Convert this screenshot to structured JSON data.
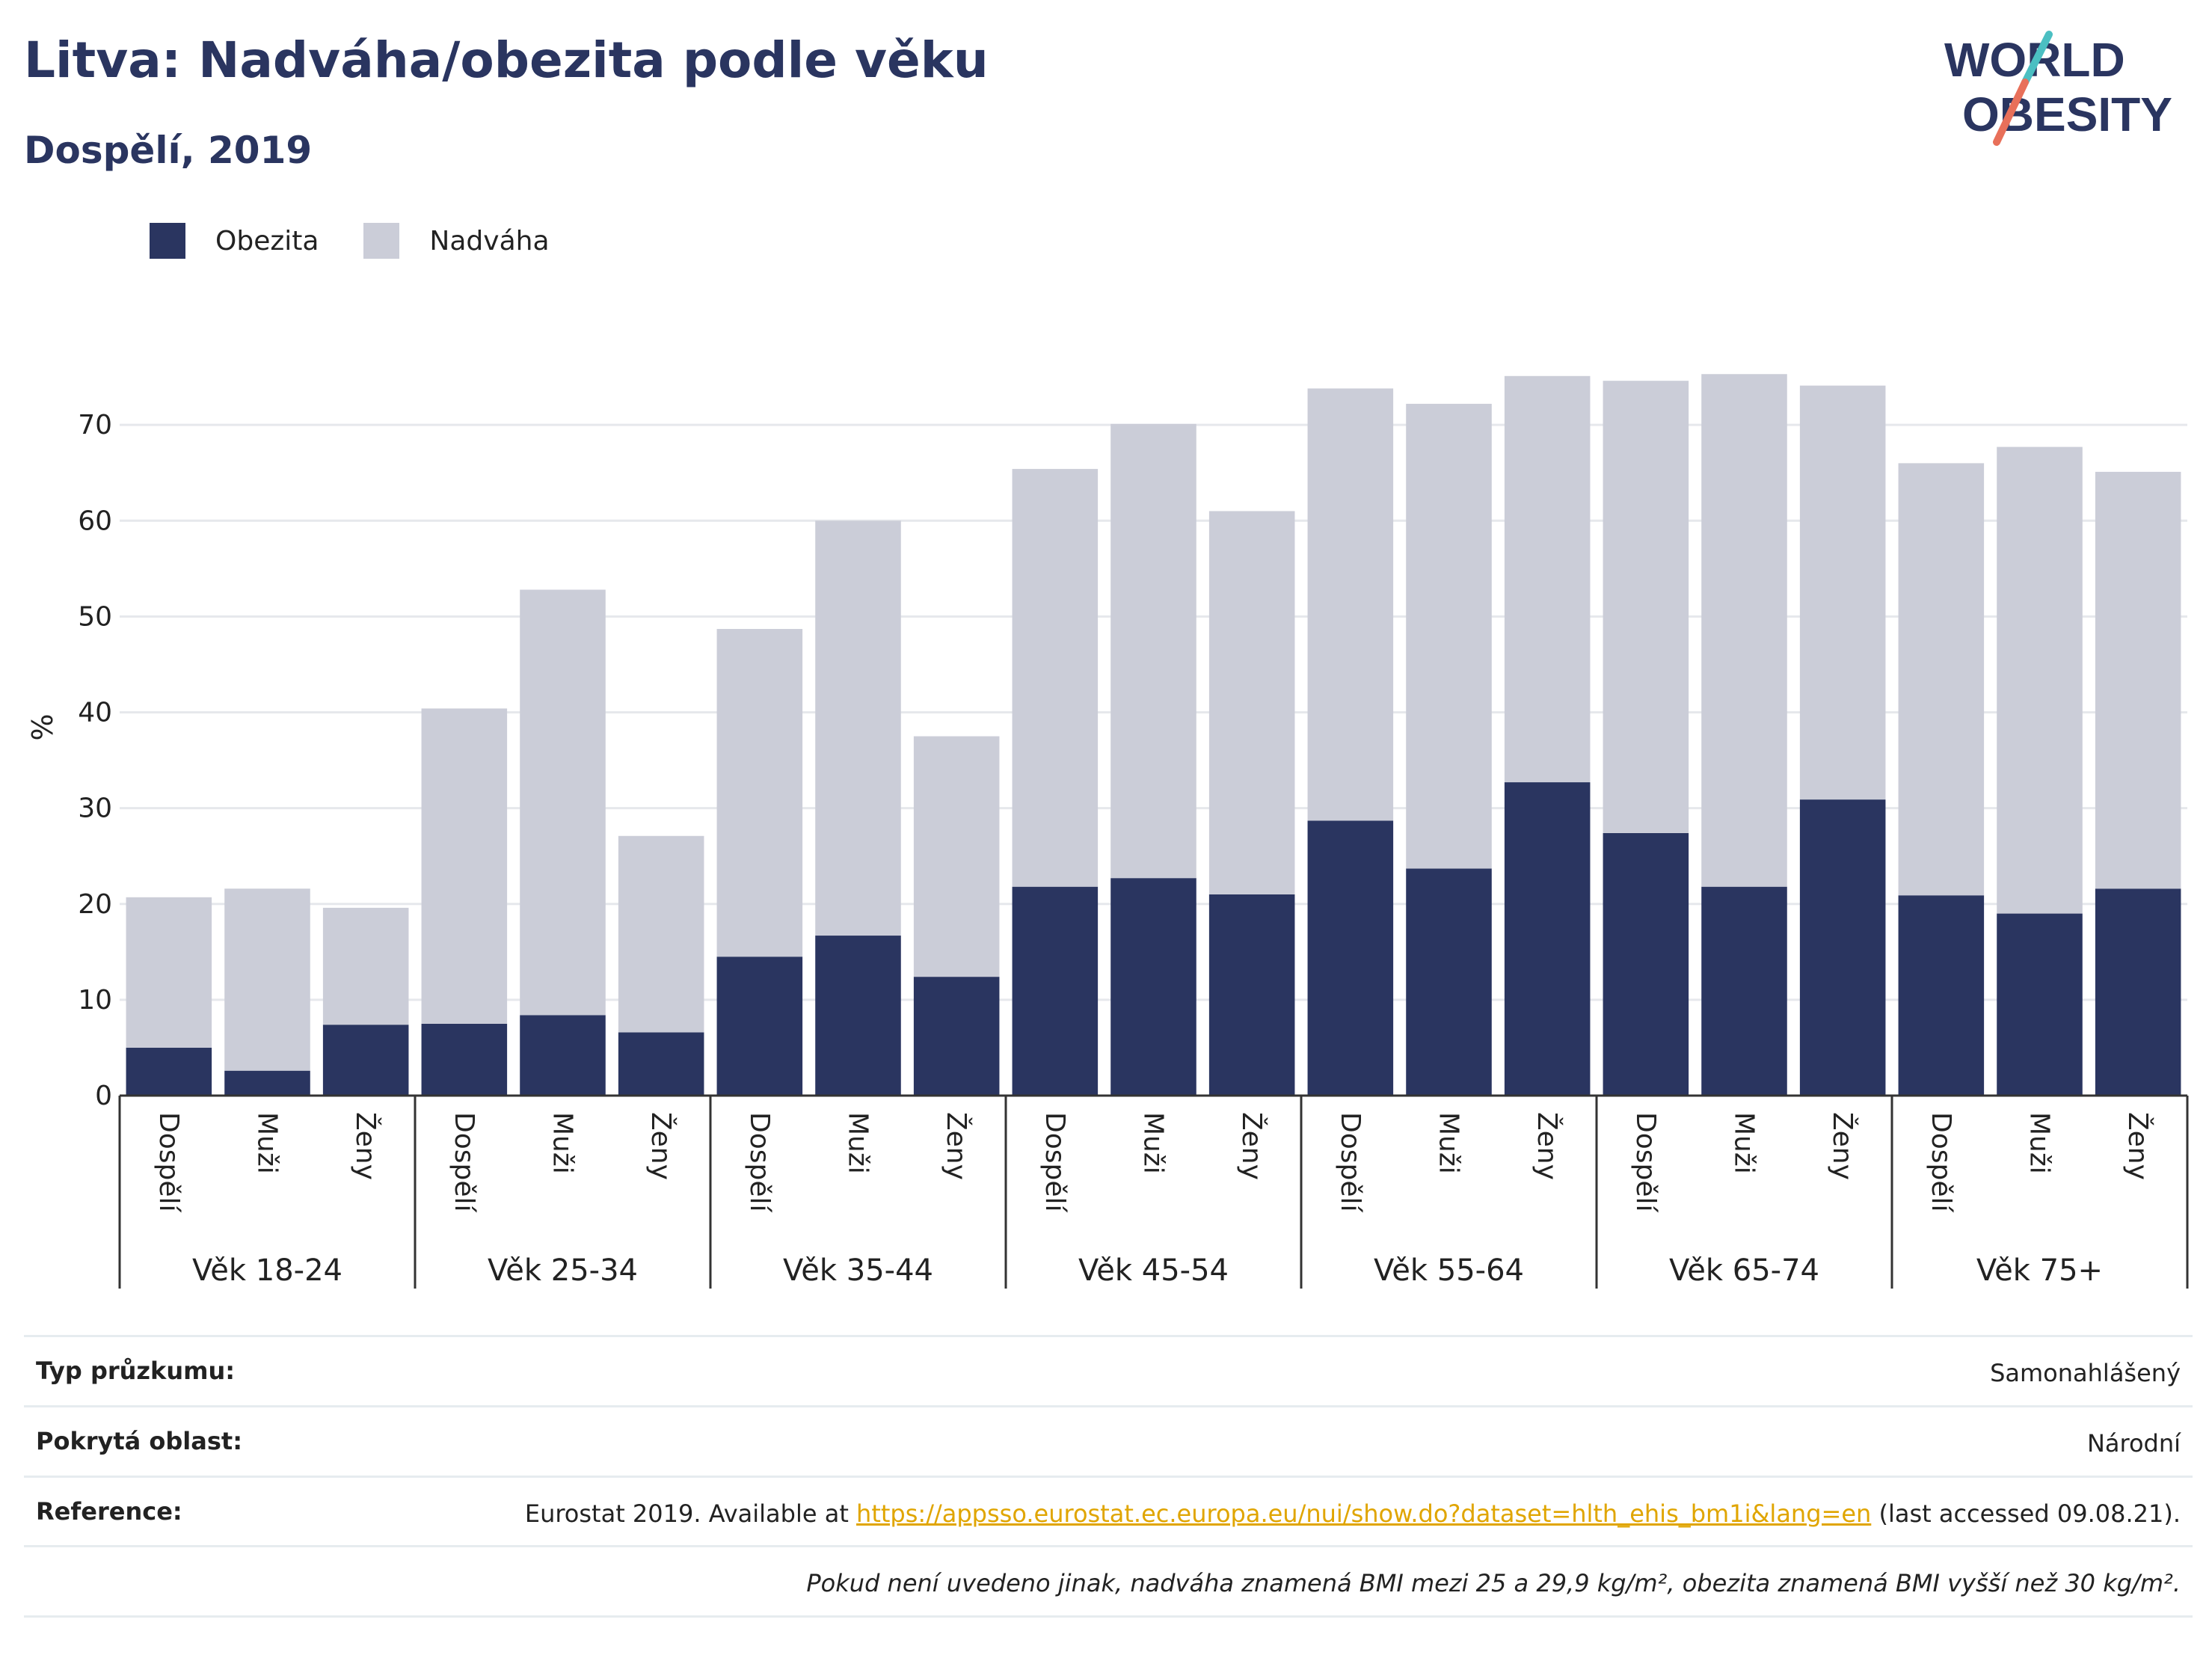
{
  "title": "Litva: Nadváha/obezita podle věku",
  "subtitle": "Dospělí, 2019",
  "logo": {
    "line1": "WORLD",
    "line2": "OBESITY",
    "colors": {
      "text": "#2a3560",
      "slash_top": "#4bbfc2",
      "slash_bottom": "#e8705a"
    }
  },
  "colors": {
    "obesity": "#2a3560",
    "overweight": "#cbcdd8",
    "grid": "#e6e8ec",
    "axis": "#333333"
  },
  "chart_data": {
    "type": "bar",
    "stacked": true,
    "ylabel": "%",
    "ylim": [
      0,
      80
    ],
    "yticks": [
      0,
      10,
      20,
      30,
      40,
      50,
      60,
      70
    ],
    "grid": true,
    "legend": {
      "placement": "top-left",
      "entries": [
        "Obezita",
        "Nadváha"
      ]
    },
    "groups": [
      {
        "label": "Věk 18-24",
        "categories": [
          "Dospělí",
          "Muži",
          "Ženy"
        ]
      },
      {
        "label": "Věk 25-34",
        "categories": [
          "Dospělí",
          "Muži",
          "Ženy"
        ]
      },
      {
        "label": "Věk 35-44",
        "categories": [
          "Dospělí",
          "Muži",
          "Ženy"
        ]
      },
      {
        "label": "Věk 45-54",
        "categories": [
          "Dospělí",
          "Muži",
          "Ženy"
        ]
      },
      {
        "label": "Věk 55-64",
        "categories": [
          "Dospělí",
          "Muži",
          "Ženy"
        ]
      },
      {
        "label": "Věk 65-74",
        "categories": [
          "Dospělí",
          "Muži",
          "Ženy"
        ]
      },
      {
        "label": "Věk 75+",
        "categories": [
          "Dospělí",
          "Muži",
          "Ženy"
        ]
      }
    ],
    "series": [
      {
        "name": "Obezita",
        "values": [
          5.0,
          2.6,
          7.4,
          7.5,
          8.4,
          6.6,
          14.5,
          16.7,
          12.4,
          21.8,
          22.7,
          21.0,
          28.7,
          23.7,
          32.7,
          27.4,
          21.8,
          30.9,
          20.9,
          19.0,
          21.6
        ]
      },
      {
        "name": "Nadváha",
        "values": [
          15.7,
          19.0,
          12.2,
          32.9,
          44.4,
          20.5,
          34.2,
          43.3,
          25.1,
          43.6,
          47.4,
          40.0,
          45.1,
          48.5,
          42.4,
          47.2,
          53.5,
          43.2,
          45.1,
          48.7,
          43.5
        ]
      }
    ]
  },
  "meta": {
    "survey_type_label": "Typ průzkumu:",
    "survey_type_value": "Samonahlášený",
    "area_label": "Pokrytá oblast:",
    "area_value": "Národní",
    "reference_label": "Reference:",
    "reference_prefix": "Eurostat 2019. Available at ",
    "reference_link": "https://appsso.eurostat.ec.europa.eu/nui/show.do?dataset=hlth_ehis_bm1i&lang=en",
    "reference_suffix": " (last accessed 09.08.21).",
    "note": "Pokud není uvedeno jinak, nadváha znamená BMI mezi 25 a 29,9 kg/m², obezita znamená BMI vyšší než 30 kg/m²."
  }
}
